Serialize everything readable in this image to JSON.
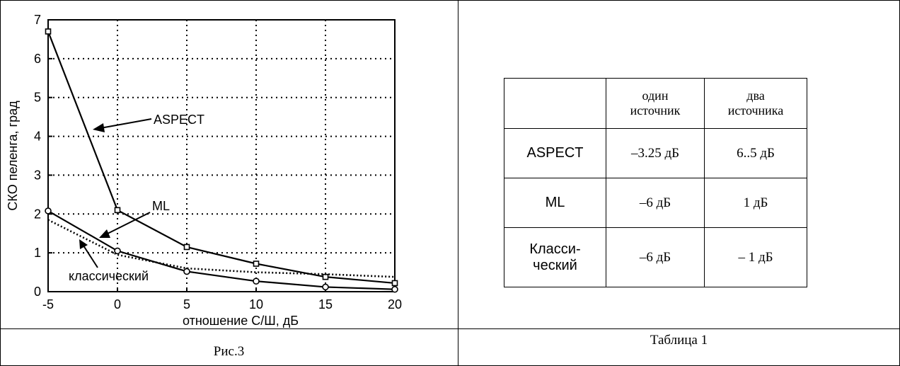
{
  "figure_caption": "Рис.3",
  "table_caption": "Таблица 1",
  "chart_data": {
    "type": "line",
    "xlabel": "отношение С/Ш, дБ",
    "ylabel": "СКО пеленга, град",
    "xlim": [
      -5,
      20
    ],
    "ylim": [
      0,
      7
    ],
    "x_ticks": [
      "-5",
      "0",
      "5",
      "10",
      "15",
      "20"
    ],
    "y_ticks": [
      "0",
      "1",
      "2",
      "3",
      "4",
      "5",
      "6",
      "7"
    ],
    "grid": true,
    "x": [
      -5,
      0,
      5,
      10,
      15,
      20
    ],
    "series": [
      {
        "name": "ASPECT",
        "marker": "square",
        "style": "solid",
        "values": [
          6.7,
          2.1,
          1.15,
          0.72,
          0.38,
          0.22
        ]
      },
      {
        "name": "ML",
        "marker": "circle",
        "style": "solid",
        "values": [
          2.08,
          1.05,
          0.52,
          0.27,
          0.12,
          0.06
        ]
      },
      {
        "name": "классический",
        "marker": "none",
        "style": "dotted",
        "values": [
          1.85,
          0.95,
          0.6,
          0.5,
          0.45,
          0.38
        ]
      }
    ],
    "annotations": [
      "ASPECT",
      "ML",
      "классический"
    ]
  },
  "table": {
    "headers": [
      "",
      "один источник",
      "два источника"
    ],
    "rows": [
      {
        "label": "ASPECT",
        "one": "–3.25 дБ",
        "two": "6..5 дБ"
      },
      {
        "label": "ML",
        "one": "–6 дБ",
        "two": "1 дБ"
      },
      {
        "label": "Класси-ческий",
        "one": "–6 дБ",
        "two": "– 1 дБ"
      }
    ]
  }
}
